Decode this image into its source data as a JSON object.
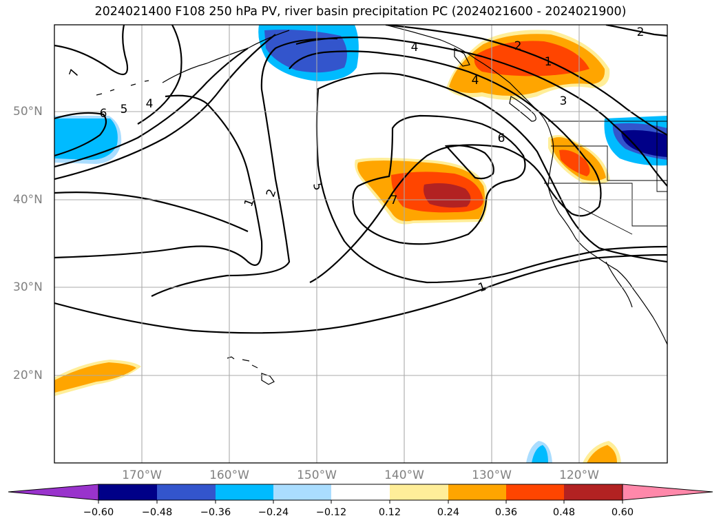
{
  "title": "2024021400 F108 250 hPa PV, river basin precipitation PC (2024021600 - 2024021900)",
  "lat_labels": [
    "50°N",
    "40°N",
    "30°N",
    "20°N"
  ],
  "lon_labels": [
    "170°W",
    "160°W",
    "150°W",
    "140°W",
    "130°W",
    "120°W"
  ],
  "contour_labels": [
    "7",
    "6",
    "5",
    "4",
    "1",
    "2",
    "5",
    "4",
    "2",
    "1",
    "6",
    "7",
    "3",
    "2",
    "1",
    "4"
  ],
  "colorbar": {
    "ticks": [
      "−0.60",
      "−0.48",
      "−0.36",
      "−0.24",
      "−0.12",
      "0.12",
      "0.24",
      "0.36",
      "0.48",
      "0.60"
    ],
    "colors": [
      "#9933cc",
      "#000088",
      "#3355cc",
      "#00bbff",
      "#aaddff",
      "#ffffff",
      "#ffee99",
      "#ffa500",
      "#ff4500",
      "#b22222",
      "#ff88aa"
    ]
  },
  "colors": {
    "neg_strong": "#000088",
    "neg_mid": "#3355cc",
    "neg": "#00bbff",
    "neg_light": "#aaddff",
    "pos_light": "#ffee99",
    "pos": "#ffa500",
    "pos_mid": "#ff4500",
    "pos_strong": "#b22222"
  }
}
